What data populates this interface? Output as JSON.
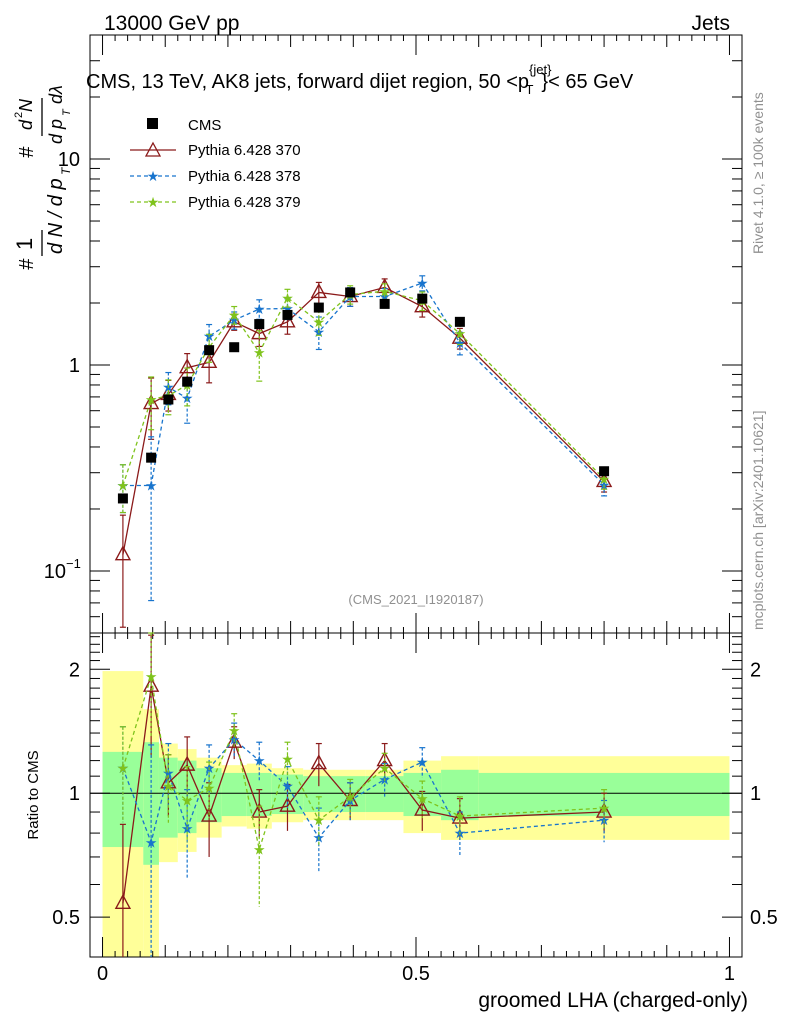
{
  "header": {
    "energy": "13000 GeV pp",
    "category": "Jets"
  },
  "side_labels": {
    "rivet": "Rivet 4.1.0, ≥ 100k events",
    "source": "mcplots.cern.ch [arXiv:2401.10621]"
  },
  "chart_data": {
    "type": "scatter",
    "title": "CMS, 13 TeV, AK8 jets, forward dijet region, 50 <p",
    "title_sup": "{jet}",
    "title_sub": "T",
    "title_tail": "}< 65 GeV",
    "ylabel_main": "1/N dN/dp_T  d²N/dp_T dλ",
    "ylabel_ratio": "Ratio to CMS",
    "xlabel": "groomed LHA (charged-only)",
    "analysis_tag": "(CMS_2021_I1920187)",
    "x_range": [
      -0.02,
      1.02
    ],
    "y_range_main": [
      0.05,
      40
    ],
    "y_range_ratio": [
      0.4,
      2.45
    ],
    "y_scale_main": "log",
    "x_ticks": [
      {
        "v": 0,
        "label": "0"
      },
      {
        "v": 0.5,
        "label": "0.5"
      },
      {
        "v": 1,
        "label": "1"
      }
    ],
    "y_ticks_main": [
      {
        "v": 0.1,
        "base": "10",
        "exp": "−1"
      },
      {
        "v": 1,
        "base": "1",
        "exp": ""
      },
      {
        "v": 10,
        "base": "10",
        "exp": ""
      }
    ],
    "y_ticks_ratio": [
      {
        "v": 0.5,
        "label": "0.5"
      },
      {
        "v": 1,
        "label": "1"
      },
      {
        "v": 2,
        "label": "2"
      }
    ],
    "x_edges": [
      0,
      0.065,
      0.09,
      0.12,
      0.15,
      0.19,
      0.23,
      0.27,
      0.32,
      0.37,
      0.42,
      0.48,
      0.54,
      0.6,
      1.0
    ],
    "x": [
      0.0325,
      0.0775,
      0.105,
      0.135,
      0.17,
      0.21,
      0.25,
      0.295,
      0.345,
      0.395,
      0.45,
      0.51,
      0.57,
      0.8
    ],
    "cms": {
      "name": "CMS",
      "values": [
        0.225,
        0.355,
        0.68,
        0.83,
        1.18,
        1.22,
        1.58,
        1.75,
        1.9,
        2.25,
        1.98,
        2.1,
        1.62,
        0.305
      ],
      "band_inner": [
        0.26,
        0.33,
        0.22,
        0.2,
        0.15,
        0.12,
        0.12,
        0.11,
        0.1,
        0.1,
        0.1,
        0.12,
        0.14,
        0.12
      ],
      "band_outer": [
        0.98,
        0.6,
        0.32,
        0.28,
        0.22,
        0.17,
        0.18,
        0.15,
        0.14,
        0.14,
        0.14,
        0.2,
        0.23,
        0.23
      ]
    },
    "series": [
      {
        "name": "Pythia 6.428 370",
        "color": "#8b1a1a",
        "marker": "triangle",
        "dash": "",
        "values": [
          0.12,
          0.65,
          0.72,
          0.97,
          1.03,
          1.62,
          1.42,
          1.62,
          2.25,
          2.15,
          2.38,
          1.92,
          1.35,
          0.272
        ],
        "ratio": [
          0.54,
          1.82,
          1.06,
          1.17,
          0.88,
          1.33,
          0.9,
          0.93,
          1.18,
          0.96,
          1.2,
          0.91,
          0.87,
          0.9
        ],
        "ratio_err": [
          0.3,
          0.6,
          0.18,
          0.2,
          0.18,
          0.12,
          0.12,
          0.12,
          0.14,
          0.1,
          0.12,
          0.1,
          0.1,
          0.1
        ]
      },
      {
        "name": "Pythia 6.428 378",
        "color": "#1874cd",
        "marker": "star",
        "dash": "4,3",
        "values": [
          0.26,
          0.26,
          0.78,
          0.69,
          1.38,
          1.65,
          1.87,
          1.88,
          1.45,
          2.15,
          2.15,
          2.5,
          1.28,
          0.262
        ],
        "ratio": [
          1.15,
          0.76,
          1.12,
          0.82,
          1.15,
          1.35,
          1.2,
          1.04,
          0.78,
          0.96,
          1.08,
          1.19,
          0.8,
          0.86
        ],
        "ratio_err": [
          0.3,
          0.55,
          0.2,
          0.2,
          0.16,
          0.13,
          0.13,
          0.12,
          0.14,
          0.1,
          0.1,
          0.1,
          0.1,
          0.1
        ]
      },
      {
        "name": "Pythia 6.428 379",
        "color": "#7fc31c",
        "marker": "star",
        "dash": "4,3",
        "values": [
          0.26,
          0.68,
          0.71,
          0.8,
          1.22,
          1.75,
          1.15,
          2.12,
          1.62,
          2.2,
          2.28,
          2.05,
          1.42,
          0.28
        ],
        "ratio": [
          1.15,
          1.92,
          1.04,
          0.96,
          1.03,
          1.42,
          0.73,
          1.21,
          0.86,
          0.98,
          1.15,
          0.97,
          0.88,
          0.92
        ],
        "ratio_err": [
          0.3,
          0.55,
          0.2,
          0.2,
          0.16,
          0.14,
          0.2,
          0.12,
          0.12,
          0.1,
          0.1,
          0.1,
          0.1,
          0.1
        ]
      }
    ]
  }
}
